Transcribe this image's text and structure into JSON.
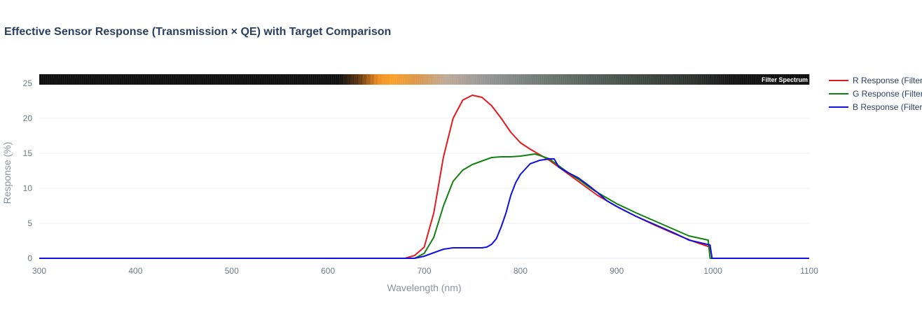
{
  "chart_data": {
    "type": "line",
    "title": "Effective Sensor Response (Transmission × QE) with Target Comparison",
    "xlabel": "Wavelength (nm)",
    "ylabel": "Response (%)",
    "xlim": [
      300,
      1100
    ],
    "ylim": [
      -1.3,
      26.3
    ],
    "xticks": [
      300,
      400,
      500,
      600,
      700,
      800,
      900,
      1000,
      1100
    ],
    "yticks": [
      0,
      5,
      10,
      15,
      20,
      25
    ],
    "grid": true,
    "legend_position": "right",
    "spectrum_strip_label": "Filter Spectrum",
    "series": [
      {
        "name": "R Response (Filter",
        "color": "#e31a1c",
        "x": [
          300,
          680,
          690,
          700,
          710,
          720,
          730,
          740,
          750,
          760,
          770,
          780,
          790,
          800,
          810,
          820,
          830,
          840,
          850,
          860,
          870,
          880,
          890,
          900,
          920,
          940,
          960,
          980,
          997,
          999,
          1000,
          1100
        ],
        "y": [
          0,
          0,
          0.4,
          1.6,
          6.5,
          14.5,
          20.0,
          22.6,
          23.3,
          23.0,
          21.8,
          20.0,
          18.0,
          16.5,
          15.6,
          14.8,
          14.0,
          13.0,
          12.0,
          11.0,
          10.0,
          9.0,
          8.2,
          7.4,
          6.0,
          4.7,
          3.5,
          2.4,
          1.6,
          0,
          0,
          0
        ]
      },
      {
        "name": "G Response (Filter",
        "color": "#108010",
        "x": [
          300,
          690,
          700,
          710,
          720,
          730,
          740,
          750,
          760,
          770,
          780,
          790,
          800,
          810,
          815,
          820,
          830,
          840,
          850,
          860,
          870,
          880,
          890,
          900,
          920,
          940,
          960,
          975,
          995,
          997,
          1000,
          1100
        ],
        "y": [
          0,
          0,
          0.7,
          3.0,
          7.5,
          11.0,
          12.6,
          13.4,
          13.9,
          14.4,
          14.5,
          14.5,
          14.6,
          14.8,
          14.9,
          14.7,
          14.2,
          13.2,
          12.2,
          11.3,
          10.3,
          9.4,
          8.6,
          7.8,
          6.5,
          5.3,
          4.1,
          3.2,
          2.6,
          0,
          0,
          0
        ]
      },
      {
        "name": "B Response (Filter",
        "color": "#1010e0",
        "x": [
          300,
          690,
          700,
          710,
          720,
          730,
          740,
          750,
          760,
          765,
          770,
          775,
          780,
          785,
          790,
          795,
          800,
          810,
          820,
          830,
          835,
          840,
          850,
          860,
          870,
          880,
          890,
          900,
          920,
          940,
          960,
          975,
          997,
          999,
          1000,
          1100
        ],
        "y": [
          0,
          0,
          0.3,
          0.8,
          1.3,
          1.5,
          1.5,
          1.5,
          1.5,
          1.6,
          2.0,
          2.8,
          4.5,
          6.5,
          9.0,
          10.8,
          12.0,
          13.5,
          14.0,
          14.2,
          14.2,
          13.0,
          12.2,
          11.5,
          10.5,
          9.4,
          8.2,
          7.4,
          6.0,
          4.8,
          3.6,
          2.6,
          1.9,
          0,
          0,
          0
        ]
      }
    ]
  }
}
